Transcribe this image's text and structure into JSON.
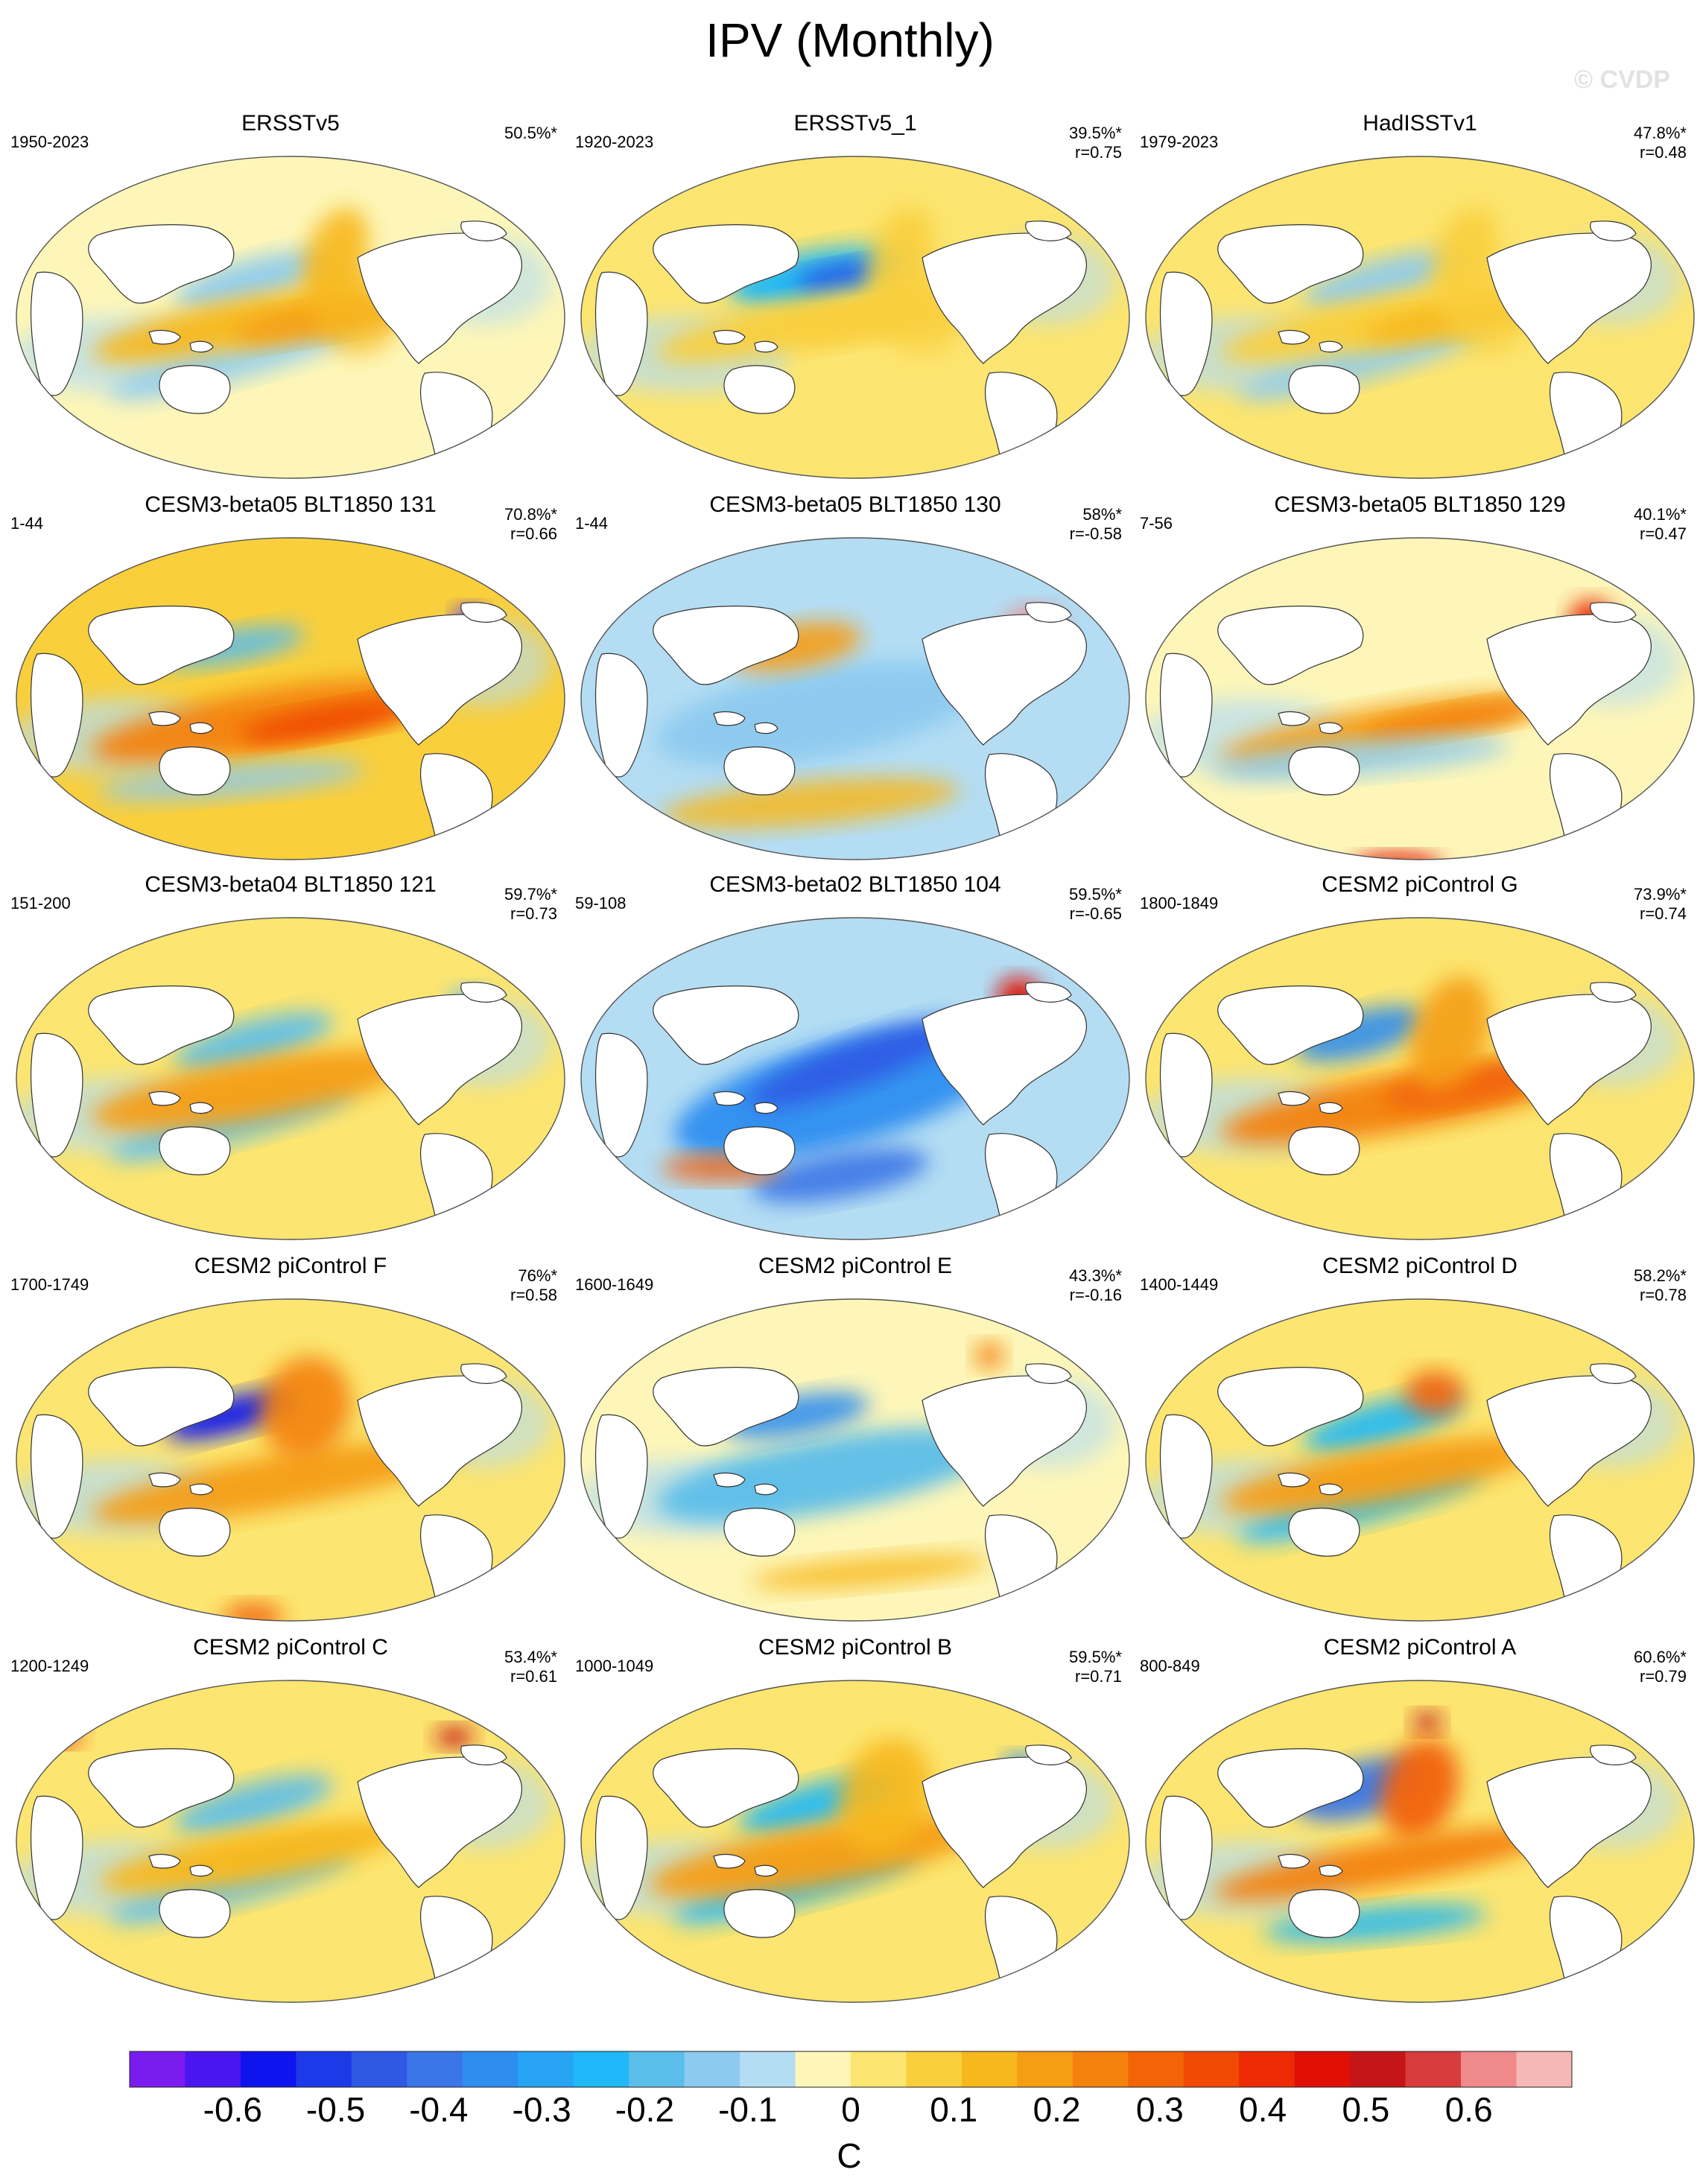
{
  "figure": {
    "title": "IPV (Monthly)",
    "watermark": "© CVDP"
  },
  "chart_data": {
    "type": "heatmap",
    "title": "IPV (Monthly)",
    "colorbar": {
      "unit": "C",
      "tick_labels": [
        "-0.6",
        "-0.5",
        "-0.4",
        "-0.3",
        "-0.2",
        "-0.1",
        "0",
        "0.1",
        "0.2",
        "0.3",
        "0.4",
        "0.5",
        "0.6"
      ],
      "range": [
        -0.7,
        0.7
      ],
      "colors": [
        "#7a1cf0",
        "#4a16f0",
        "#0e14ee",
        "#1c3ae8",
        "#2f58e4",
        "#3a76e6",
        "#2d8ef0",
        "#28a4f4",
        "#1fb8f8",
        "#5bbeea",
        "#8ccaef",
        "#b4ddf3",
        "#fdf6b8",
        "#fce570",
        "#f9cf3c",
        "#f7b81e",
        "#f59e14",
        "#f4820c",
        "#f36408",
        "#f04a05",
        "#ec2a04",
        "#e01004",
        "#c41618",
        "#d83c3c",
        "#f08a8a",
        "#f6b8b6"
      ]
    },
    "panels": [
      {
        "title": "ERSSTv5",
        "years": "1950-2023",
        "pct": "50.5%*",
        "r": ""
      },
      {
        "title": "ERSSTv5_1",
        "years": "1920-2023",
        "pct": "39.5%*",
        "r": "r=0.75"
      },
      {
        "title": "HadISSTv1",
        "years": "1979-2023",
        "pct": "47.8%*",
        "r": "r=0.48"
      },
      {
        "title": "CESM3-beta05 BLT1850 131",
        "years": "1-44",
        "pct": "70.8%*",
        "r": "r=0.66"
      },
      {
        "title": "CESM3-beta05 BLT1850 130",
        "years": "1-44",
        "pct": "58%*",
        "r": "r=-0.58"
      },
      {
        "title": "CESM3-beta05 BLT1850 129",
        "years": "7-56",
        "pct": "40.1%*",
        "r": "r=0.47"
      },
      {
        "title": "CESM3-beta04 BLT1850 121",
        "years": "151-200",
        "pct": "59.7%*",
        "r": "r=0.73"
      },
      {
        "title": "CESM3-beta02 BLT1850 104",
        "years": "59-108",
        "pct": "59.5%*",
        "r": "r=-0.65"
      },
      {
        "title": "CESM2 piControl G",
        "years": "1800-1849",
        "pct": "73.9%*",
        "r": "r=0.74"
      },
      {
        "title": "CESM2 piControl F",
        "years": "1700-1749",
        "pct": "76%*",
        "r": "r=0.58"
      },
      {
        "title": "CESM2 piControl E",
        "years": "1600-1649",
        "pct": "43.3%*",
        "r": "r=-0.16"
      },
      {
        "title": "CESM2 piControl D",
        "years": "1400-1449",
        "pct": "58.2%*",
        "r": "r=0.78"
      },
      {
        "title": "CESM2 piControl C",
        "years": "1200-1249",
        "pct": "53.4%*",
        "r": "r=0.61"
      },
      {
        "title": "CESM2 piControl B",
        "years": "1000-1049",
        "pct": "59.5%*",
        "r": "r=0.71"
      },
      {
        "title": "CESM2 piControl A",
        "years": "800-849",
        "pct": "60.6%*",
        "r": "r=0.79"
      }
    ]
  }
}
